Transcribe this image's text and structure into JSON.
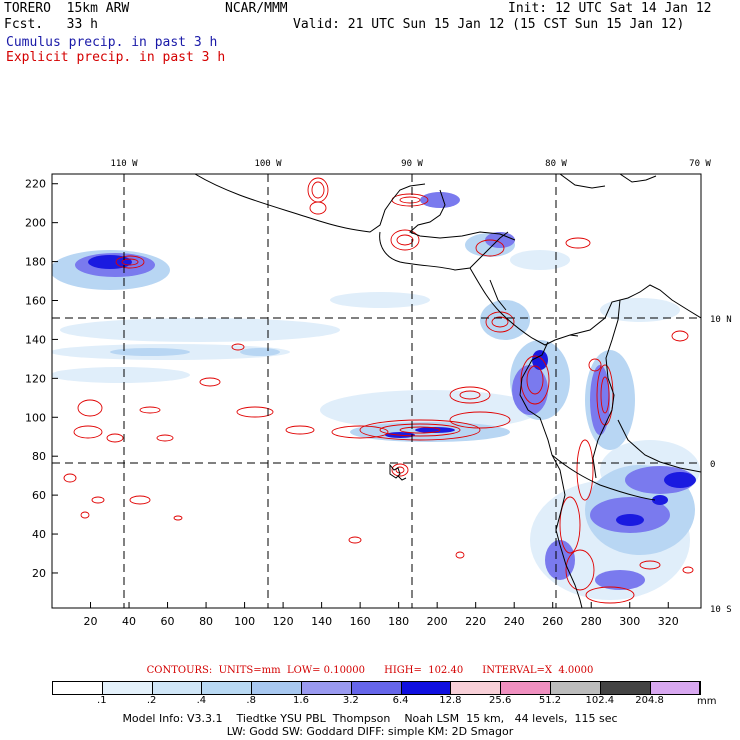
{
  "header": {
    "model": "TORERO  15km ARW",
    "center": "NCAR/MMM",
    "init": "Init: 12 UTC Sat 14 Jan 12",
    "fcst": "Fcst.   33 h",
    "valid": "Valid: 21 UTC Sun 15 Jan 12 (15 CST Sun 15 Jan 12)",
    "cumulus_title": "Cumulus precip. in past 3 h",
    "explicit_title": "Explicit precip. in past 3 h"
  },
  "colors": {
    "cumulus_text": "#1a1aa8",
    "explicit_text": "#d40000",
    "coast": "#000000",
    "contour": "#e00000"
  },
  "map": {
    "lon_labels": [
      "110 W",
      "100 W",
      "90 W",
      "80 W",
      "70 W"
    ],
    "lat_labels": [
      "10 N",
      "0",
      "10 S"
    ],
    "x_ticks": [
      "20",
      "40",
      "60",
      "80",
      "100",
      "120",
      "140",
      "160",
      "180",
      "200",
      "220",
      "240",
      "260",
      "280",
      "300",
      "320"
    ],
    "y_ticks": [
      "20",
      "40",
      "60",
      "80",
      "100",
      "120",
      "140",
      "160",
      "180",
      "200",
      "220"
    ]
  },
  "contour_info": {
    "label": "CONTOURS:",
    "units": "UNITS=mm",
    "low": "LOW= 0.10000",
    "high": "HIGH=  102.40",
    "interval": "INTERVAL=X  4.0000"
  },
  "legend": {
    "labels": [
      ".1",
      ".2",
      ".4",
      ".8",
      "1.6",
      "3.2",
      "6.4",
      "12.8",
      "25.6",
      "51.2",
      "102.4",
      "204.8"
    ],
    "colors": [
      "#ffffff",
      "#e4f1fb",
      "#d0e6f7",
      "#b9d9f3",
      "#a8c8f0",
      "#9a9af0",
      "#6666ea",
      "#1010e0",
      "#f8d0d8",
      "#f090c0",
      "#bcbcbc",
      "#444444",
      "#d8a8f0"
    ],
    "units": "mm"
  },
  "footer": {
    "line1": "Model Info: V3.3.1    Tiedtke YSU PBL  Thompson    Noah LSM  15 km,   44 levels,  115 sec",
    "line2": "LW: Godd SW: Goddard DIFF: simple KM: 2D Smagor"
  }
}
